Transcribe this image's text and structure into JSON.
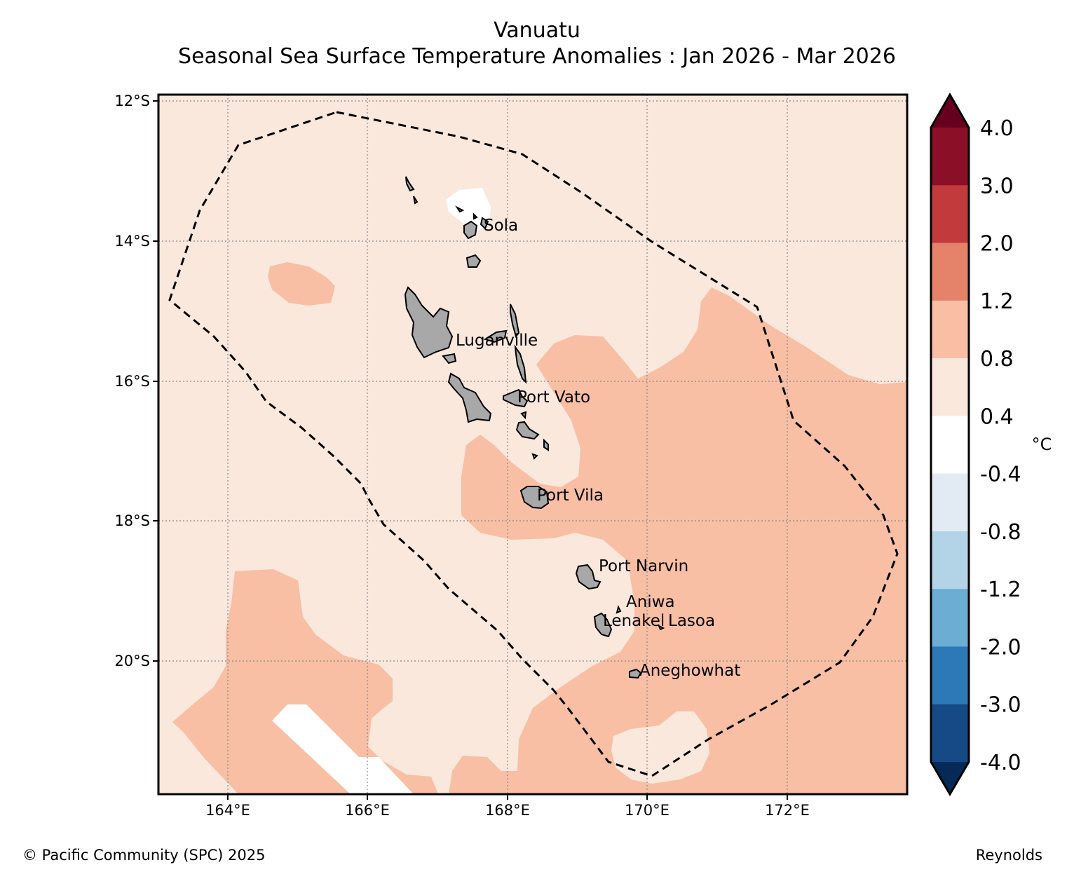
{
  "title": "Vanuatu",
  "subtitle": "Seasonal Sea Surface Temperature Anomalies : Jan 2026 - Mar 2026",
  "footer": {
    "copyright": "© Pacific Community (SPC) 2025",
    "source": "Reynolds"
  },
  "axes": {
    "lat_ticks": [
      "12°S",
      "14°S",
      "16°S",
      "18°S",
      "20°S"
    ],
    "lon_ticks": [
      "164°E",
      "166°E",
      "168°E",
      "170°E",
      "172°E"
    ]
  },
  "places": [
    "Sola",
    "Luganville",
    "Port Vato",
    "Port Vila",
    "Port Narvin",
    "Aniwa",
    "Lenakel",
    "Lasoa",
    "Aneghowhat"
  ],
  "colorbar": {
    "unit": "°C",
    "labels": [
      "4.0",
      "3.0",
      "2.0",
      "1.2",
      "0.8",
      "0.4",
      "-0.4",
      "-0.8",
      "-1.2",
      "-2.0",
      "-3.0",
      "-4.0"
    ],
    "colors": [
      "#67001f",
      "#8a0f27",
      "#c23a3c",
      "#e4826a",
      "#f8bfa4",
      "#fae8dd",
      "#ffffff",
      "#e2ebf3",
      "#b3d4e7",
      "#6badd3",
      "#2d79b7",
      "#154a87",
      "#052a58"
    ]
  }
}
